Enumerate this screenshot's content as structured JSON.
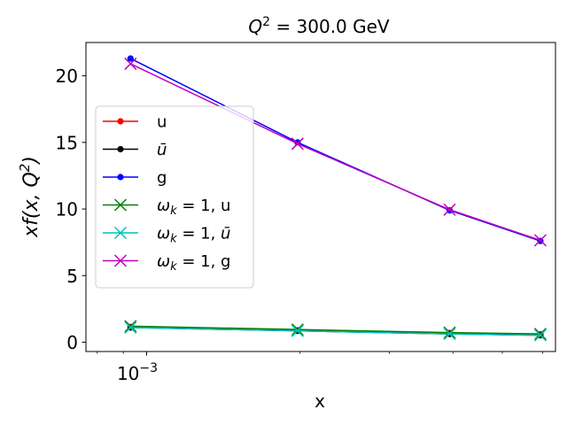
{
  "chart_data": {
    "type": "line",
    "title": {
      "q": "Q",
      "sup": "2",
      "rest": " = 300.0 GeV"
    },
    "xlabel": "x",
    "ylabel": {
      "pre": "xf(x, Q",
      "sup": "2",
      "post": ")"
    },
    "x_scale": "log",
    "x_tick_label": {
      "base": "10",
      "exp": "−3"
    },
    "yticks": [
      0,
      5,
      10,
      15,
      20
    ],
    "ylim": [
      -0.7,
      22.5
    ],
    "xlim": [
      0.00076,
      0.00636
    ],
    "grid": false,
    "legend_position": "center-left",
    "x": [
      0.00093,
      0.00198,
      0.00394,
      0.00594
    ],
    "series": [
      {
        "name": "u",
        "legend": {
          "type": "plain",
          "text": "u"
        },
        "marker": "dot",
        "color": "#ff0000",
        "values": [
          1.15,
          0.9,
          0.7,
          0.6
        ]
      },
      {
        "name": "ū",
        "legend": {
          "type": "plain",
          "text": "ū",
          "italic": true
        },
        "marker": "dot",
        "color": "#000000",
        "values": [
          1.1,
          0.85,
          0.62,
          0.52
        ]
      },
      {
        "name": "g",
        "legend": {
          "type": "plain",
          "text": "g"
        },
        "marker": "dot",
        "color": "#0000ff",
        "values": [
          21.3,
          15.0,
          9.9,
          7.6
        ]
      },
      {
        "name": "ωk = 1, u",
        "legend": {
          "type": "omega",
          "rest": " = 1, ",
          "tail": "u",
          "tail_italic": false
        },
        "marker": "x",
        "color": "#008000",
        "values": [
          1.2,
          0.95,
          0.72,
          0.62
        ]
      },
      {
        "name": "ωk = 1, ū",
        "legend": {
          "type": "omega",
          "rest": " = 1, ",
          "tail": "ū",
          "tail_italic": true
        },
        "marker": "x",
        "color": "#00bfbf",
        "values": [
          1.1,
          0.85,
          0.62,
          0.52
        ]
      },
      {
        "name": "ωk = 1, g",
        "legend": {
          "type": "omega",
          "rest": " = 1, ",
          "tail": "g",
          "tail_italic": false
        },
        "marker": "x",
        "color": "#bf00bf",
        "values": [
          20.9,
          14.9,
          9.95,
          7.65
        ]
      }
    ]
  }
}
